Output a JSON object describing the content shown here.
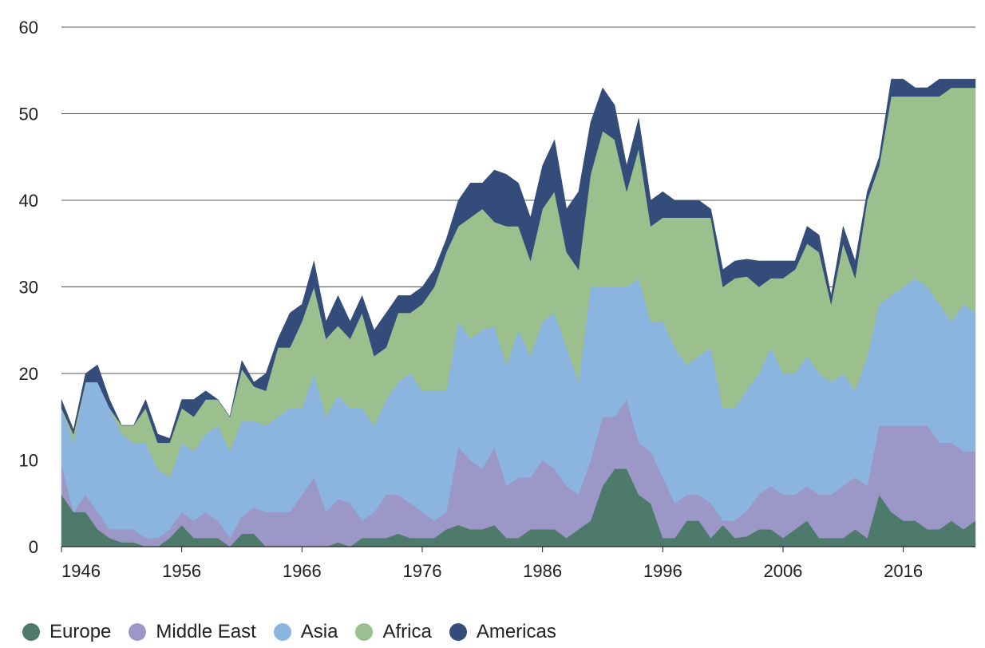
{
  "chart_data": {
    "type": "area",
    "stacked": true,
    "title": "",
    "xlabel": "",
    "ylabel": "",
    "ylim": [
      0,
      60
    ],
    "xlim": [
      1946,
      2022
    ],
    "y_ticks": [
      0,
      10,
      20,
      30,
      40,
      50,
      60
    ],
    "x_ticks": [
      1946,
      1956,
      1966,
      1976,
      1986,
      1996,
      2006,
      2016
    ],
    "grid": "horizontal",
    "legend_position": "bottom-left",
    "x": [
      1946,
      1947,
      1948,
      1949,
      1950,
      1951,
      1952,
      1953,
      1954,
      1955,
      1956,
      1957,
      1958,
      1959,
      1960,
      1961,
      1962,
      1963,
      1964,
      1965,
      1966,
      1967,
      1968,
      1969,
      1970,
      1971,
      1972,
      1973,
      1974,
      1975,
      1976,
      1977,
      1978,
      1979,
      1980,
      1981,
      1982,
      1983,
      1984,
      1985,
      1986,
      1987,
      1988,
      1989,
      1990,
      1991,
      1992,
      1993,
      1994,
      1995,
      1996,
      1997,
      1998,
      1999,
      2000,
      2001,
      2002,
      2003,
      2004,
      2005,
      2006,
      2007,
      2008,
      2009,
      2010,
      2011,
      2012,
      2013,
      2014,
      2015,
      2016,
      2017,
      2018,
      2019,
      2020,
      2021,
      2022
    ],
    "series": [
      {
        "name": "Europe",
        "color": "#4e7a6c",
        "values": [
          6,
          4,
          4,
          2,
          1,
          0.5,
          0.5,
          0,
          0,
          1,
          2.5,
          1,
          1,
          1,
          0,
          1.5,
          1.5,
          0,
          0,
          0,
          0,
          0,
          0,
          0.5,
          0,
          1,
          1,
          1,
          1.5,
          1,
          1,
          1,
          2,
          2.5,
          2,
          2,
          2.5,
          1,
          1,
          2,
          2,
          2,
          1,
          2,
          3,
          7,
          9,
          9,
          6,
          5,
          1,
          1,
          3,
          3,
          1,
          2.5,
          1,
          1.2,
          2,
          2,
          1,
          2,
          3,
          1,
          1,
          1,
          2,
          1,
          6,
          4,
          3,
          3,
          2,
          2,
          3,
          2,
          3
        ]
      },
      {
        "name": "Middle East",
        "color": "#9b97c7",
        "values": [
          3.5,
          0,
          2,
          2,
          1,
          1.5,
          1.5,
          1,
          1,
          1,
          1.5,
          2,
          3,
          2,
          1,
          2,
          3,
          4,
          4,
          4,
          6,
          8,
          4,
          5,
          5,
          2,
          3,
          5,
          4.5,
          4,
          3,
          2,
          2,
          9,
          8,
          7,
          9,
          6,
          7,
          6,
          8,
          7,
          6,
          4,
          7,
          8,
          6,
          8,
          6,
          6,
          7,
          4,
          3,
          3,
          4,
          0.5,
          2,
          3,
          4,
          5,
          5,
          4,
          4,
          5,
          5,
          6,
          6,
          6,
          8,
          10,
          11,
          11,
          12,
          10,
          9,
          9,
          8
        ]
      },
      {
        "name": "Asia",
        "color": "#8bb4de",
        "values": [
          6.5,
          8,
          13,
          15,
          14,
          11,
          10,
          11,
          8,
          6,
          8,
          8,
          9,
          11,
          10,
          11,
          10,
          10,
          11,
          12,
          10,
          12,
          11,
          12,
          11,
          13,
          10,
          11,
          13,
          15,
          14,
          15,
          14,
          14.5,
          14,
          16,
          14,
          14,
          17,
          14,
          16,
          18,
          16,
          13,
          20,
          15,
          15,
          13,
          19,
          15,
          18,
          18,
          15,
          16,
          18,
          13,
          13,
          14,
          14,
          16,
          14,
          14,
          15,
          14,
          13,
          13,
          10,
          15,
          14,
          15,
          16,
          17,
          16,
          16,
          14,
          17,
          16
        ]
      },
      {
        "name": "Africa",
        "color": "#9bc08e",
        "values": [
          0,
          1,
          0,
          0,
          0,
          1,
          2,
          4,
          3,
          4,
          4,
          4,
          4,
          3,
          4,
          6,
          4,
          4,
          8,
          7,
          10,
          10,
          9,
          8,
          8,
          11,
          8,
          6,
          8,
          7,
          10,
          12,
          16,
          11,
          14,
          14,
          12,
          16,
          12,
          11,
          13,
          14,
          11,
          13,
          13,
          18,
          17,
          11,
          15,
          11,
          12,
          15,
          17,
          16,
          15,
          14,
          15,
          13,
          10,
          8,
          11,
          12,
          13,
          14,
          9,
          15,
          13,
          18,
          16,
          23,
          22,
          21,
          22,
          24,
          27,
          25,
          26
        ]
      },
      {
        "name": "Americas",
        "color": "#344c7a",
        "values": [
          1,
          0.5,
          1,
          2,
          1,
          0,
          0,
          1,
          1,
          0.5,
          1,
          2,
          1,
          0,
          0,
          1,
          0.5,
          2,
          1,
          4,
          2,
          3,
          2,
          3.5,
          2,
          2,
          3,
          4,
          2,
          2,
          2,
          2,
          1.5,
          3,
          4,
          3,
          6,
          6,
          5,
          5,
          5,
          6,
          5,
          9,
          6,
          5,
          4,
          3,
          3.5,
          3,
          3,
          2,
          2,
          2,
          1,
          2,
          2,
          2,
          3,
          2,
          2,
          1,
          2,
          2,
          1,
          2,
          2,
          1,
          1,
          2,
          2,
          1,
          1,
          2,
          1,
          1,
          1
        ]
      }
    ]
  }
}
